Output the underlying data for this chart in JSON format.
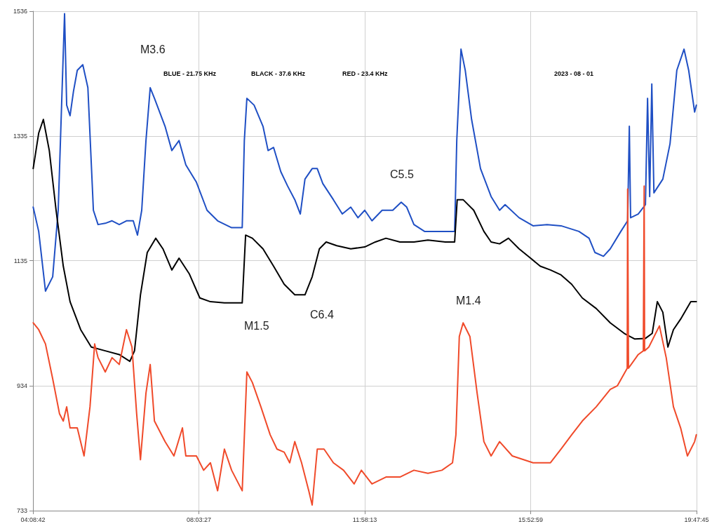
{
  "chart_data": {
    "type": "line",
    "marker": "none",
    "grid": true,
    "xlim": [
      4.145,
      19.79583
    ],
    "xticks": [
      {
        "value": 4.145,
        "label": "04:08:42"
      },
      {
        "value": 8.0575,
        "label": "08:03:27"
      },
      {
        "value": 11.97028,
        "label": "11:58:13"
      },
      {
        "value": 15.88306,
        "label": "15:52:59"
      },
      {
        "value": 19.79583,
        "label": "19:47:45"
      }
    ],
    "ylim": [
      733,
      1536
    ],
    "yticks": [
      733,
      934,
      1135,
      1335,
      1536
    ],
    "annotations": [
      "BLUE - 21.75 KHz",
      "BLACK - 37.6 KHz",
      "RED - 23.4 KHz",
      "2023 - 08 - 01",
      "M3.6",
      "M1.5",
      "C6.4",
      "C5.5",
      "M1.4"
    ],
    "series": [
      {
        "color": "#1f4fc4",
        "x": [
          4.15,
          4.28,
          4.44,
          4.61,
          4.74,
          4.82,
          4.89,
          4.94,
          5.02,
          5.1,
          5.19,
          5.32,
          5.44,
          5.57,
          5.68,
          5.85,
          6.01,
          6.18,
          6.35,
          6.51,
          6.61,
          6.71,
          6.81,
          6.91,
          7.01,
          7.26,
          7.42,
          7.59,
          7.75,
          8.0,
          8.25,
          8.5,
          8.83,
          9.08,
          9.13,
          9.19,
          9.36,
          9.57,
          9.69,
          9.82,
          9.99,
          10.15,
          10.32,
          10.45,
          10.56,
          10.73,
          10.85,
          10.98,
          11.23,
          11.44,
          11.64,
          11.81,
          11.97,
          12.14,
          12.38,
          12.63,
          12.83,
          12.96,
          13.13,
          13.38,
          13.63,
          13.87,
          14.09,
          14.14,
          14.24,
          14.34,
          14.49,
          14.7,
          14.95,
          15.15,
          15.28,
          15.61,
          15.94,
          16.27,
          16.6,
          17.02,
          17.26,
          17.4,
          17.6,
          17.76,
          18.01,
          18.17,
          18.21,
          18.24,
          18.42,
          18.59,
          18.64,
          18.69,
          18.74,
          18.79,
          19.0,
          19.17,
          19.33,
          19.5,
          19.61,
          19.75,
          19.79
        ],
        "values": [
          1221,
          1182,
          1086,
          1109,
          1216,
          1385,
          1532,
          1385,
          1368,
          1407,
          1441,
          1450,
          1413,
          1216,
          1193,
          1195,
          1199,
          1193,
          1199,
          1199,
          1176,
          1216,
          1328,
          1413,
          1396,
          1351,
          1312,
          1328,
          1289,
          1261,
          1216,
          1199,
          1188,
          1188,
          1328,
          1396,
          1385,
          1351,
          1312,
          1317,
          1278,
          1255,
          1233,
          1210,
          1266,
          1283,
          1283,
          1259,
          1233,
          1210,
          1221,
          1204,
          1216,
          1199,
          1216,
          1216,
          1229,
          1221,
          1193,
          1182,
          1182,
          1182,
          1182,
          1328,
          1475,
          1441,
          1362,
          1283,
          1238,
          1216,
          1225,
          1204,
          1191,
          1193,
          1191,
          1182,
          1171,
          1148,
          1142,
          1154,
          1182,
          1199,
          1351,
          1204,
          1210,
          1225,
          1396,
          1238,
          1419,
          1244,
          1266,
          1323,
          1441,
          1475,
          1441,
          1374,
          1385
        ]
      },
      {
        "color": "#000000",
        "x": [
          4.15,
          4.28,
          4.39,
          4.53,
          4.69,
          4.86,
          5.02,
          5.27,
          5.52,
          5.85,
          6.18,
          6.43,
          6.54,
          6.68,
          6.84,
          7.04,
          7.21,
          7.42,
          7.59,
          7.83,
          8.08,
          8.33,
          8.66,
          9.08,
          9.16,
          9.32,
          9.57,
          9.82,
          10.07,
          10.32,
          10.56,
          10.73,
          10.9,
          11.06,
          11.31,
          11.64,
          11.97,
          12.22,
          12.47,
          12.8,
          13.13,
          13.46,
          13.87,
          14.09,
          14.15,
          14.29,
          14.54,
          14.78,
          14.95,
          15.15,
          15.36,
          15.61,
          15.88,
          16.11,
          16.35,
          16.6,
          16.85,
          17.1,
          17.43,
          17.76,
          18.09,
          18.34,
          18.59,
          18.75,
          18.87,
          19.0,
          19.12,
          19.25,
          19.42,
          19.66,
          19.79
        ],
        "values": [
          1283,
          1340,
          1362,
          1312,
          1216,
          1126,
          1069,
          1024,
          996,
          990,
          984,
          973,
          990,
          1080,
          1148,
          1171,
          1154,
          1120,
          1139,
          1114,
          1075,
          1069,
          1067,
          1067,
          1176,
          1171,
          1154,
          1126,
          1097,
          1080,
          1080,
          1109,
          1154,
          1165,
          1159,
          1154,
          1157,
          1165,
          1171,
          1165,
          1165,
          1168,
          1165,
          1165,
          1233,
          1233,
          1216,
          1182,
          1165,
          1162,
          1171,
          1154,
          1139,
          1126,
          1120,
          1112,
          1097,
          1075,
          1058,
          1035,
          1018,
          1009,
          1010,
          1018,
          1069,
          1052,
          996,
          1024,
          1041,
          1069,
          1069
        ]
      },
      {
        "color": "#f04a2a",
        "x": [
          4.15,
          4.28,
          4.44,
          4.61,
          4.77,
          4.86,
          4.94,
          5.02,
          5.19,
          5.35,
          5.49,
          5.6,
          5.68,
          5.85,
          6.01,
          6.18,
          6.35,
          6.48,
          6.59,
          6.68,
          6.81,
          6.91,
          7.01,
          7.26,
          7.47,
          7.67,
          7.75,
          8.0,
          8.17,
          8.33,
          8.5,
          8.66,
          8.83,
          9.08,
          9.19,
          9.32,
          9.52,
          9.74,
          9.9,
          10.07,
          10.2,
          10.32,
          10.48,
          10.65,
          10.73,
          10.85,
          11.01,
          11.23,
          11.47,
          11.72,
          11.89,
          12.14,
          12.47,
          12.8,
          13.13,
          13.46,
          13.79,
          14.04,
          14.12,
          14.2,
          14.29,
          14.45,
          14.62,
          14.78,
          14.95,
          15.15,
          15.45,
          15.94,
          16.35,
          16.6,
          16.85,
          17.1,
          17.43,
          17.76,
          17.93,
          18.16,
          18.17,
          18.19,
          18.42,
          18.54,
          18.56,
          18.57,
          18.67,
          18.92,
          19.08,
          19.25,
          19.42,
          19.58,
          19.75,
          19.79
        ],
        "values": [
          1035,
          1024,
          1001,
          945,
          889,
          877,
          900,
          866,
          866,
          821,
          900,
          1001,
          979,
          956,
          979,
          968,
          1024,
          996,
          889,
          815,
          922,
          968,
          877,
          844,
          821,
          866,
          821,
          821,
          798,
          810,
          765,
          832,
          798,
          765,
          956,
          939,
          900,
          855,
          832,
          827,
          810,
          844,
          810,
          765,
          742,
          832,
          832,
          810,
          798,
          776,
          798,
          776,
          787,
          787,
          798,
          793,
          798,
          810,
          855,
          1013,
          1035,
          1013,
          922,
          844,
          821,
          844,
          821,
          810,
          810,
          832,
          855,
          877,
          900,
          928,
          934,
          962,
          1250,
          962,
          984,
          990,
          1255,
          990,
          996,
          1030,
          979,
          900,
          866,
          821,
          844,
          855
        ]
      }
    ]
  }
}
